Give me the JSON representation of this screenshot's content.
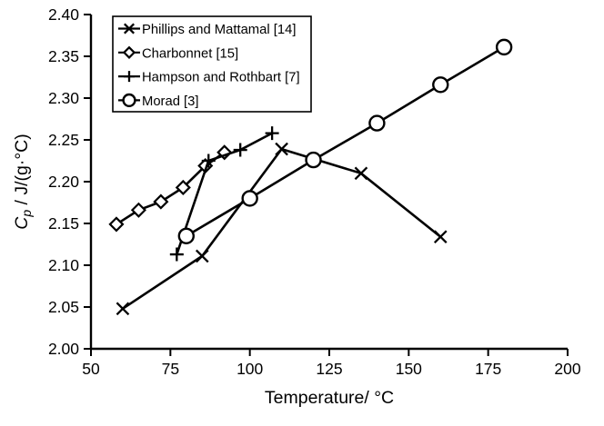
{
  "chart_data": {
    "type": "line",
    "title": "",
    "xlabel": "Temperature/ °C",
    "ylabel_text": "Cp / J/(g·°C)",
    "ylabel_parts": {
      "var": "C",
      "sub": "p",
      "rest": " / J/(g·°C)"
    },
    "xlim": [
      50,
      200
    ],
    "ylim": [
      2.0,
      2.4
    ],
    "x_ticks": [
      50,
      75,
      100,
      125,
      150,
      175,
      200
    ],
    "x_tick_labels": [
      "50",
      "75",
      "100",
      "125",
      "150",
      "175",
      "200"
    ],
    "y_ticks": [
      2.0,
      2.05,
      2.1,
      2.15,
      2.2,
      2.25,
      2.3,
      2.35,
      2.4
    ],
    "y_tick_labels": [
      "2.00",
      "2.05",
      "2.10",
      "2.15",
      "2.20",
      "2.25",
      "2.30",
      "2.35",
      "2.40"
    ],
    "grid": false,
    "legend": {
      "position": "top-left",
      "border": true
    },
    "colors": {
      "stroke": "#000000",
      "background": "#ffffff",
      "marker_fill": "#ffffff"
    },
    "series": [
      {
        "name": "Phillips and Mattamal [14]",
        "marker": "x",
        "x": [
          60,
          85,
          110,
          135,
          160
        ],
        "y": [
          2.048,
          2.111,
          2.239,
          2.21,
          2.134
        ]
      },
      {
        "name": "Charbonnet [15]",
        "marker": "diamond",
        "x": [
          58,
          65,
          72,
          79,
          86,
          92
        ],
        "y": [
          2.149,
          2.166,
          2.176,
          2.193,
          2.219,
          2.235
        ]
      },
      {
        "name": "Hampson and Rothbart [7]",
        "marker": "plus",
        "x": [
          77,
          87,
          97,
          107
        ],
        "y": [
          2.113,
          2.225,
          2.238,
          2.258
        ]
      },
      {
        "name": "Morad [3]",
        "marker": "circle",
        "x": [
          80,
          100,
          120,
          140,
          160,
          180
        ],
        "y": [
          2.135,
          2.18,
          2.226,
          2.27,
          2.316,
          2.361
        ]
      }
    ]
  }
}
